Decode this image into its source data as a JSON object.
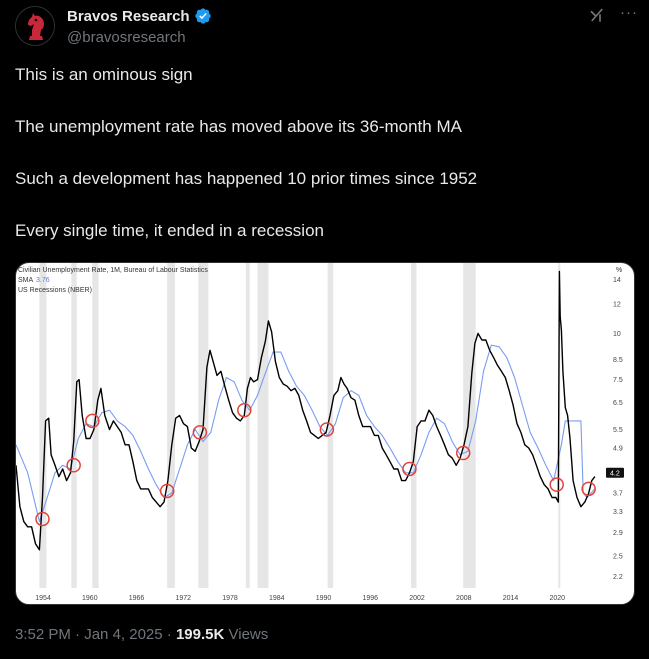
{
  "author": {
    "display_name": "Bravos Research",
    "handle": "@bravosresearch",
    "verified": true,
    "avatar_icon": "red-knight-chess-icon"
  },
  "tweet": {
    "lines": [
      "This is an ominous sign",
      "The unemployment rate has moved above its 36-month MA",
      "Such a development has happened 10 prior times since 1952",
      "Every single time, it ended in a recession"
    ]
  },
  "meta": {
    "time": "3:52 PM",
    "separator": "·",
    "date": "Jan 4, 2025",
    "views_count": "199.5K",
    "views_label": "Views"
  },
  "icons": {
    "grok": "grok-icon",
    "more": "more-icon",
    "verified": "verified-badge-icon"
  },
  "colors": {
    "background": "#000000",
    "text": "#e7e9ea",
    "muted": "#71767b",
    "verified": "#1d9bf0",
    "unemployment_line": "#000000",
    "sma_line": "#7a9cf0",
    "recession_band": "#e6e6e6",
    "signal_circle": "#e0433a"
  },
  "chart_data": {
    "type": "line",
    "title": "Civilian Unemployment Rate, 1M, Bureau of Labour Statistics",
    "legend": [
      {
        "name": "SMA",
        "value": "3.76"
      },
      {
        "name": "US Recessions (NBER)",
        "value": ""
      }
    ],
    "y_unit": "%",
    "y_scale": "log",
    "y_ticks": [
      14,
      12,
      10,
      8.5,
      7.5,
      6.5,
      5.5,
      4.9,
      4.2,
      3.7,
      3.3,
      2.9,
      2.5,
      2.2
    ],
    "y_current_label": "4.2",
    "x_ticks": [
      "1954",
      "1960",
      "1966",
      "1972",
      "1978",
      "1984",
      "1990",
      "1996",
      "2002",
      "2008",
      "2014",
      "2020"
    ],
    "xlim": [
      1950.5,
      2025.2
    ],
    "ylim": [
      2.05,
      15.5
    ],
    "recessions": [
      [
        1953.5,
        1954.4
      ],
      [
        1957.6,
        1958.3
      ],
      [
        1960.3,
        1961.1
      ],
      [
        1969.9,
        1970.9
      ],
      [
        1973.9,
        1975.2
      ],
      [
        1980.0,
        1980.5
      ],
      [
        1981.5,
        1982.9
      ],
      [
        1990.5,
        1991.2
      ],
      [
        2001.2,
        2001.9
      ],
      [
        2007.9,
        2009.5
      ],
      [
        2020.1,
        2020.3
      ]
    ],
    "series": [
      {
        "name": "Civilian Unemployment Rate",
        "x": [
          1950.5,
          1951.0,
          1951.5,
          1952.0,
          1952.5,
          1953.0,
          1953.5,
          1953.9,
          1954.3,
          1954.7,
          1955.0,
          1955.5,
          1956.0,
          1956.5,
          1957.0,
          1957.5,
          1957.9,
          1958.3,
          1958.6,
          1959.0,
          1959.5,
          1960.0,
          1960.5,
          1961.0,
          1961.4,
          1961.9,
          1962.5,
          1963.0,
          1963.5,
          1964.0,
          1964.5,
          1965.0,
          1965.5,
          1966.0,
          1966.5,
          1967.0,
          1967.5,
          1968.0,
          1968.5,
          1969.0,
          1969.5,
          1970.0,
          1970.5,
          1971.0,
          1971.5,
          1972.0,
          1972.5,
          1973.0,
          1973.5,
          1974.0,
          1974.5,
          1975.0,
          1975.4,
          1975.8,
          1976.3,
          1976.8,
          1977.3,
          1977.8,
          1978.3,
          1978.8,
          1979.3,
          1979.8,
          1980.2,
          1980.6,
          1981.0,
          1981.5,
          1982.0,
          1982.5,
          1982.9,
          1983.3,
          1983.8,
          1984.3,
          1984.8,
          1985.3,
          1985.8,
          1986.3,
          1986.8,
          1987.3,
          1987.8,
          1988.3,
          1988.8,
          1989.3,
          1989.8,
          1990.3,
          1990.8,
          1991.3,
          1991.8,
          1992.2,
          1992.6,
          1993.0,
          1993.5,
          1994.0,
          1994.5,
          1995.0,
          1995.5,
          1996.0,
          1996.5,
          1997.0,
          1997.5,
          1998.0,
          1998.5,
          1999.0,
          1999.5,
          2000.0,
          2000.5,
          2001.0,
          2001.5,
          2002.0,
          2002.5,
          2003.0,
          2003.5,
          2004.0,
          2004.5,
          2005.0,
          2005.5,
          2006.0,
          2006.5,
          2007.0,
          2007.5,
          2008.0,
          2008.5,
          2009.0,
          2009.4,
          2009.8,
          2010.3,
          2010.8,
          2011.3,
          2011.8,
          2012.3,
          2012.8,
          2013.3,
          2013.8,
          2014.3,
          2014.8,
          2015.3,
          2015.8,
          2016.3,
          2016.8,
          2017.3,
          2017.8,
          2018.3,
          2018.8,
          2019.3,
          2019.8,
          2020.1,
          2020.25,
          2020.35,
          2020.5,
          2020.7,
          2021.0,
          2021.3,
          2021.6,
          2022.0,
          2022.5,
          2023.0,
          2023.5,
          2024.0,
          2024.4,
          2024.8
        ],
        "y": [
          4.4,
          3.4,
          3.1,
          3.0,
          3.0,
          2.7,
          2.6,
          3.6,
          5.8,
          5.9,
          4.7,
          4.4,
          4.1,
          4.3,
          4.0,
          4.2,
          5.1,
          7.4,
          7.5,
          6.0,
          5.2,
          5.2,
          5.5,
          6.6,
          7.1,
          6.0,
          5.5,
          5.8,
          5.6,
          5.4,
          5.0,
          5.0,
          4.5,
          4.0,
          3.8,
          3.8,
          3.8,
          3.6,
          3.5,
          3.4,
          3.5,
          4.0,
          5.0,
          5.9,
          6.0,
          5.7,
          5.6,
          4.9,
          4.8,
          5.1,
          5.5,
          8.1,
          9.0,
          8.4,
          7.7,
          7.9,
          7.2,
          6.6,
          6.1,
          5.9,
          5.8,
          6.0,
          7.1,
          7.6,
          7.4,
          7.5,
          8.6,
          9.5,
          10.8,
          10.1,
          8.4,
          7.6,
          7.3,
          7.2,
          7.0,
          7.1,
          6.8,
          6.2,
          5.8,
          5.4,
          5.3,
          5.2,
          5.3,
          5.4,
          6.0,
          6.8,
          7.0,
          7.6,
          7.3,
          7.1,
          6.7,
          6.6,
          6.0,
          5.6,
          5.6,
          5.6,
          5.3,
          5.3,
          4.9,
          4.7,
          4.5,
          4.3,
          4.3,
          4.0,
          4.0,
          4.2,
          4.5,
          5.6,
          5.8,
          5.8,
          6.2,
          6.0,
          5.6,
          5.3,
          5.0,
          4.7,
          4.6,
          4.4,
          4.6,
          5.0,
          5.6,
          7.8,
          9.4,
          10.0,
          9.6,
          9.6,
          9.0,
          8.6,
          8.2,
          7.9,
          7.6,
          7.0,
          6.4,
          5.7,
          5.4,
          5.0,
          4.9,
          4.7,
          4.4,
          4.1,
          3.9,
          3.8,
          3.6,
          3.6,
          3.5,
          14.7,
          11.1,
          10.2,
          7.9,
          6.3,
          6.0,
          5.2,
          4.0,
          3.6,
          3.4,
          3.5,
          3.7,
          4.0,
          4.1
        ]
      },
      {
        "name": "SMA",
        "x": [
          1950.5,
          1952.0,
          1953.5,
          1954.5,
          1955.5,
          1956.5,
          1957.5,
          1958.5,
          1959.5,
          1960.5,
          1961.5,
          1962.5,
          1963.5,
          1964.5,
          1965.5,
          1966.5,
          1967.5,
          1968.5,
          1969.5,
          1970.5,
          1971.5,
          1972.5,
          1973.5,
          1974.5,
          1975.5,
          1976.5,
          1977.5,
          1978.5,
          1979.5,
          1980.5,
          1981.5,
          1982.5,
          1983.5,
          1984.5,
          1985.5,
          1986.5,
          1987.5,
          1988.5,
          1989.5,
          1990.5,
          1991.5,
          1992.5,
          1993.5,
          1994.5,
          1995.5,
          1996.5,
          1997.5,
          1998.5,
          1999.5,
          2000.5,
          2001.5,
          2002.5,
          2003.5,
          2004.5,
          2005.5,
          2006.5,
          2007.5,
          2008.5,
          2009.5,
          2010.5,
          2011.5,
          2012.5,
          2013.5,
          2014.5,
          2015.5,
          2016.5,
          2017.5,
          2018.5,
          2019.5,
          2020.5,
          2021.0,
          2022.0,
          2023.0,
          2023.3,
          2023.8,
          2024.3,
          2024.8
        ],
        "y": [
          5.0,
          4.2,
          3.1,
          3.6,
          4.2,
          4.4,
          4.3,
          5.2,
          5.7,
          5.6,
          6.1,
          6.2,
          5.8,
          5.6,
          5.3,
          4.8,
          4.3,
          3.9,
          3.6,
          3.7,
          4.3,
          5.0,
          5.5,
          5.1,
          5.4,
          6.6,
          7.6,
          7.4,
          6.6,
          6.2,
          6.8,
          7.8,
          8.9,
          8.9,
          7.9,
          7.2,
          6.8,
          6.2,
          5.6,
          5.3,
          5.7,
          6.7,
          7.0,
          6.8,
          6.0,
          5.6,
          5.3,
          4.9,
          4.5,
          4.2,
          4.2,
          4.7,
          5.4,
          5.9,
          5.7,
          5.1,
          4.7,
          4.8,
          5.8,
          7.9,
          9.3,
          9.2,
          8.6,
          7.6,
          6.4,
          5.4,
          4.9,
          4.4,
          4.0,
          5.0,
          5.8,
          5.8,
          5.8,
          3.7,
          3.6,
          3.7,
          3.8
        ]
      }
    ],
    "signals": [
      {
        "x": 1953.9,
        "y": 3.15
      },
      {
        "x": 1957.9,
        "y": 4.4
      },
      {
        "x": 1960.3,
        "y": 5.8
      },
      {
        "x": 1969.9,
        "y": 3.75
      },
      {
        "x": 1974.1,
        "y": 5.4
      },
      {
        "x": 1979.8,
        "y": 6.2
      },
      {
        "x": 1990.4,
        "y": 5.5
      },
      {
        "x": 2001.0,
        "y": 4.3
      },
      {
        "x": 2007.9,
        "y": 4.75
      },
      {
        "x": 2019.9,
        "y": 3.9
      },
      {
        "x": 2024.0,
        "y": 3.8
      }
    ]
  }
}
